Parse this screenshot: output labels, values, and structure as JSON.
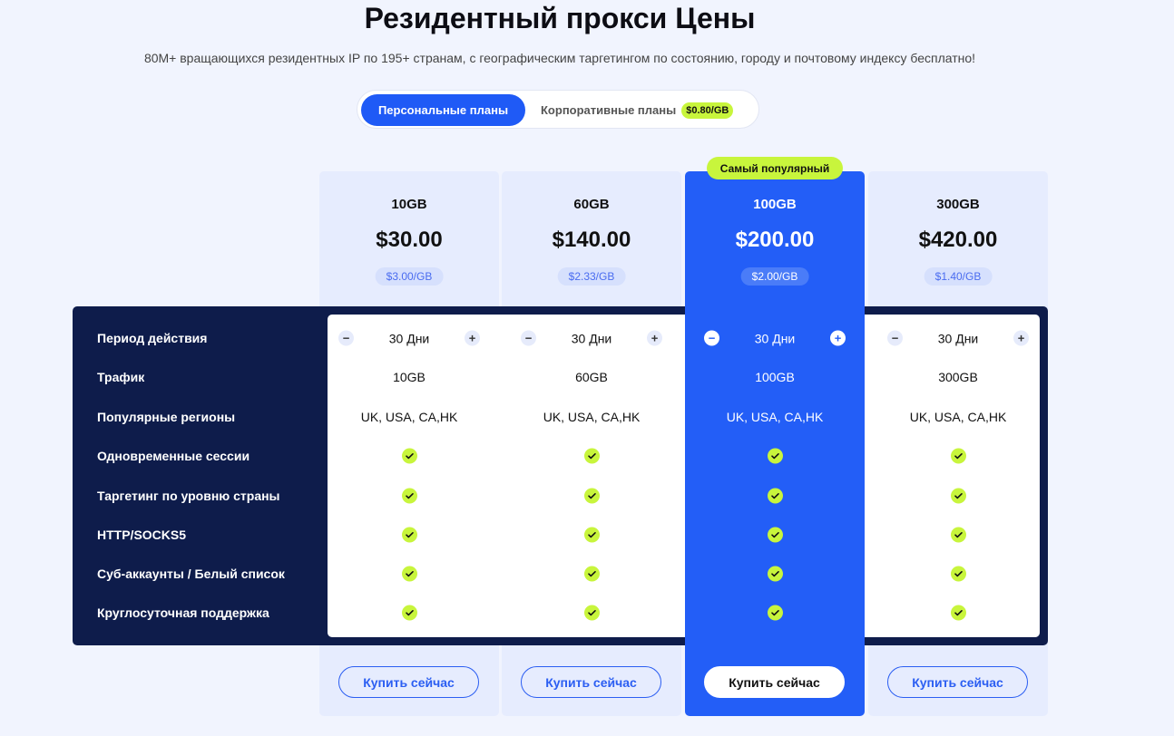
{
  "header": {
    "title": "Резидентный прокси Цены",
    "subtitle": "80M+ вращающихся резидентных IP по 195+ странам, с географическим таргетингом по состоянию, городу и почтовому индексу бесплатно!"
  },
  "toggle": {
    "personal": "Персональные планы",
    "corporate": "Корпоративные планы",
    "corporate_badge": "$0.80/GB"
  },
  "popular_badge": "Самый популярный",
  "features": [
    "Период действия",
    "Трафик",
    "Популярные регионы",
    "Одновременные сессии",
    "Таргетинг по уровню страны",
    "HTTP/SOCKS5",
    "Суб-аккаунты / Белый список",
    "Круглосуточная поддержка"
  ],
  "plans": [
    {
      "gb": "10GB",
      "price": "$30.00",
      "per_gb": "$3.00/GB",
      "period": "30 Дни",
      "traffic": "10GB",
      "regions": "UK, USA, CA,HK",
      "popular": false,
      "buy": "Купить сейчас"
    },
    {
      "gb": "60GB",
      "price": "$140.00",
      "per_gb": "$2.33/GB",
      "period": "30 Дни",
      "traffic": "60GB",
      "regions": "UK, USA, CA,HK",
      "popular": false,
      "buy": "Купить сейчас"
    },
    {
      "gb": "100GB",
      "price": "$200.00",
      "per_gb": "$2.00/GB",
      "period": "30 Дни",
      "traffic": "100GB",
      "regions": "UK, USA, CA,HK",
      "popular": true,
      "buy": "Купить сейчас"
    },
    {
      "gb": "300GB",
      "price": "$420.00",
      "per_gb": "$1.40/GB",
      "period": "30 Дни",
      "traffic": "300GB",
      "regions": "UK, USA, CA,HK",
      "popular": false,
      "buy": "Купить сейчас"
    }
  ],
  "stepper": {
    "minus": "−",
    "plus": "+"
  },
  "colors": {
    "accent": "#235ef7",
    "lime": "#c8f53c",
    "navy": "#0e1c4b"
  },
  "icons": {
    "included": "check-circle-icon"
  }
}
